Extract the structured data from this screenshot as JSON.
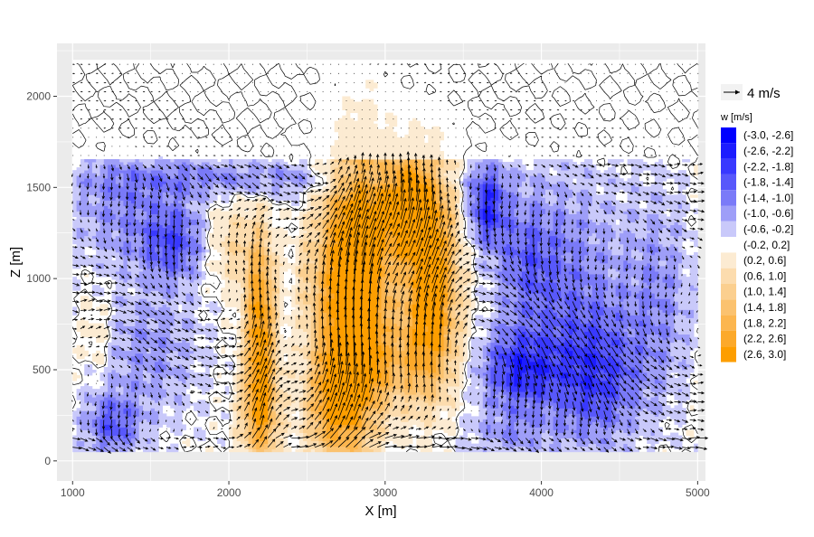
{
  "chart_data": {
    "type": "heatmap",
    "title": "",
    "xlabel": "X [m]",
    "ylabel": "Z [m]",
    "xlim": [
      900,
      5050
    ],
    "ylim": [
      -110,
      2290
    ],
    "field_extent": {
      "x": [
        1000,
        5000
      ],
      "z": [
        50,
        2200
      ]
    },
    "x_ticks": [
      1000,
      2000,
      3000,
      4000,
      5000
    ],
    "y_ticks": [
      0,
      500,
      1000,
      1500,
      2000
    ],
    "x_tick_labels": [
      "1000",
      "2000",
      "3000",
      "4000",
      "5000"
    ],
    "y_tick_labels": [
      "0",
      "500",
      "1000",
      "1500",
      "2000"
    ],
    "grid": true,
    "panel_background": "#ebebeb",
    "vector_reference": {
      "label": "4 m/s",
      "speed": 4
    },
    "legend": {
      "title": "w [m/s]",
      "position": "right",
      "bins": [
        {
          "label": "(-3.0, -2.6]",
          "color": "#0000ff"
        },
        {
          "label": "(-2.6, -2.2]",
          "color": "#1c1cff"
        },
        {
          "label": "(-2.2, -1.8]",
          "color": "#3939ff"
        },
        {
          "label": "(-1.8, -1.4]",
          "color": "#5858fb"
        },
        {
          "label": "(-1.4, -1.0]",
          "color": "#7a7af8"
        },
        {
          "label": "(-1.0, -0.6]",
          "color": "#9e9ef8"
        },
        {
          "label": "(-0.6, -0.2]",
          "color": "#c9c9fa"
        },
        {
          "label": "(-0.2, 0.2]",
          "color": "#ffffff"
        },
        {
          "label": "(0.2, 0.6]",
          "color": "#fcebd2"
        },
        {
          "label": "(0.6, 1.0]",
          "color": "#fcdcae"
        },
        {
          "label": "(1.0, 1.4]",
          "color": "#fbcf8f"
        },
        {
          "label": "(1.4, 1.8]",
          "color": "#fbc26f"
        },
        {
          "label": "(1.8, 2.2]",
          "color": "#fcb64f"
        },
        {
          "label": "(2.2, 2.6]",
          "color": "#fca92a"
        },
        {
          "label": "(2.6, 3.0]",
          "color": "#fd9e00"
        }
      ]
    },
    "w_features": [
      {
        "sign": "positive",
        "x": 2200,
        "z": 750,
        "sx": 70,
        "sz": 350,
        "amp": 2.8
      },
      {
        "sign": "positive",
        "x": 2200,
        "z": 250,
        "sx": 90,
        "sz": 200,
        "amp": 1.8
      },
      {
        "sign": "positive",
        "x": 2000,
        "z": 1200,
        "sx": 110,
        "sz": 180,
        "amp": 0.9
      },
      {
        "sign": "positive",
        "x": 2730,
        "z": 900,
        "sx": 130,
        "sz": 520,
        "amp": 2.9
      },
      {
        "sign": "positive",
        "x": 2880,
        "z": 1050,
        "sx": 110,
        "sz": 600,
        "amp": 2.2
      },
      {
        "sign": "positive",
        "x": 2650,
        "z": 300,
        "sx": 120,
        "sz": 200,
        "amp": 1.6
      },
      {
        "sign": "positive",
        "x": 3120,
        "z": 1420,
        "sx": 110,
        "sz": 220,
        "amp": 2.9
      },
      {
        "sign": "positive",
        "x": 3300,
        "z": 1150,
        "sx": 120,
        "sz": 380,
        "amp": 2.7
      },
      {
        "sign": "positive",
        "x": 3250,
        "z": 650,
        "sx": 160,
        "sz": 250,
        "amp": 1.5
      },
      {
        "sign": "positive",
        "x": 3000,
        "z": 500,
        "sx": 200,
        "sz": 150,
        "amp": 0.8
      },
      {
        "sign": "positive",
        "x": 1150,
        "z": 700,
        "sx": 70,
        "sz": 150,
        "amp": 0.6
      },
      {
        "sign": "negative",
        "x": 1650,
        "z": 1200,
        "sx": 150,
        "sz": 150,
        "amp": -1.6
      },
      {
        "sign": "negative",
        "x": 1250,
        "z": 200,
        "sx": 130,
        "sz": 120,
        "amp": -1.5
      },
      {
        "sign": "negative",
        "x": 1500,
        "z": 600,
        "sx": 220,
        "sz": 250,
        "amp": -0.9
      },
      {
        "sign": "negative",
        "x": 1300,
        "z": 1350,
        "sx": 220,
        "sz": 200,
        "amp": -0.9
      },
      {
        "sign": "negative",
        "x": 3650,
        "z": 1400,
        "sx": 90,
        "sz": 150,
        "amp": -2.0
      },
      {
        "sign": "negative",
        "x": 3850,
        "z": 500,
        "sx": 180,
        "sz": 150,
        "amp": -2.0
      },
      {
        "sign": "negative",
        "x": 4350,
        "z": 450,
        "sx": 200,
        "sz": 250,
        "amp": -1.7
      },
      {
        "sign": "negative",
        "x": 4200,
        "z": 1000,
        "sx": 250,
        "sz": 400,
        "amp": -1.0
      },
      {
        "sign": "negative",
        "x": 3900,
        "z": 1100,
        "sx": 150,
        "sz": 250,
        "amp": -1.1
      },
      {
        "sign": "negative",
        "x": 4750,
        "z": 900,
        "sx": 150,
        "sz": 400,
        "amp": -0.9
      },
      {
        "sign": "negative",
        "x": 3800,
        "z": 150,
        "sx": 200,
        "sz": 100,
        "amp": -0.8
      },
      {
        "sign": "negative",
        "x": 2400,
        "z": 1550,
        "sx": 900,
        "sz": 60,
        "amp": -0.6
      },
      {
        "sign": "negative",
        "x": 1800,
        "z": 1550,
        "sx": 500,
        "sz": 100,
        "amp": -0.6
      },
      {
        "sign": "positive",
        "x": 2500,
        "z": 1000,
        "sx": 60,
        "sz": 200,
        "amp": 0.5
      }
    ]
  }
}
